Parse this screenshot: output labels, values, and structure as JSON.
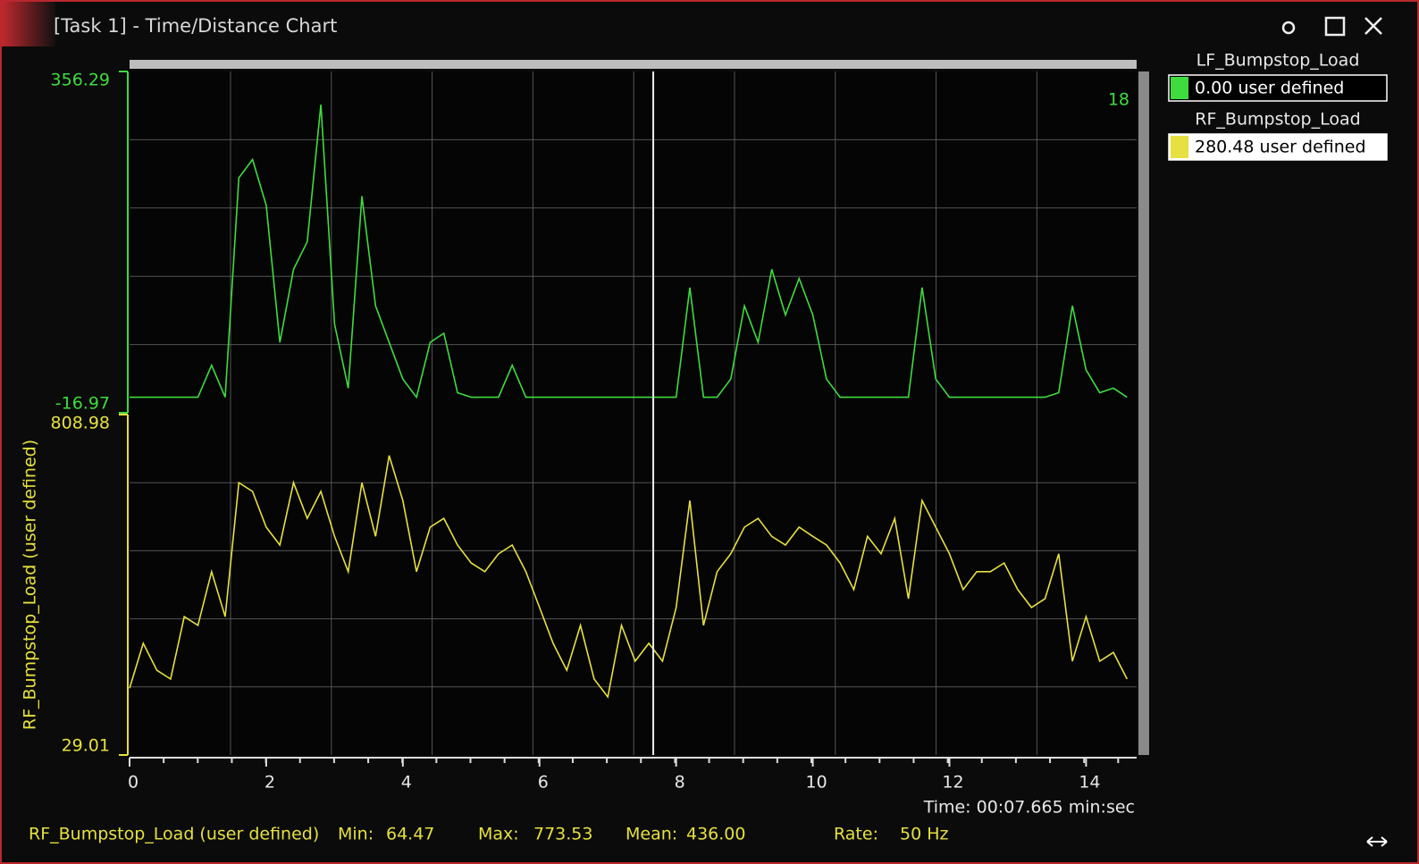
{
  "window": {
    "title": "[Task 1] - Time/Distance Chart"
  },
  "chart_data": [
    {
      "type": "line",
      "annotation": "18",
      "x": [
        0,
        0.2,
        0.4,
        0.6,
        0.8,
        1,
        1.2,
        1.4,
        1.6,
        1.8,
        2,
        2.2,
        2.4,
        2.6,
        2.8,
        3,
        3.2,
        3.4,
        3.6,
        3.8,
        4,
        4.2,
        4.4,
        4.6,
        4.8,
        5,
        5.2,
        5.4,
        5.6,
        5.8,
        6,
        6.2,
        6.4,
        6.6,
        6.8,
        7,
        7.2,
        7.4,
        7.6,
        7.8,
        8,
        8.2,
        8.4,
        8.6,
        8.8,
        9,
        9.2,
        9.4,
        9.6,
        9.8,
        10,
        10.2,
        10.4,
        10.6,
        10.8,
        11,
        11.2,
        11.4,
        11.6,
        11.8,
        12,
        12.2,
        12.4,
        12.6,
        12.8,
        13,
        13.2,
        13.4,
        13.6,
        13.8,
        14,
        14.2,
        14.4,
        14.6
      ],
      "xlim": [
        0,
        14.74
      ],
      "ylim": [
        -16.97,
        356.29
      ],
      "yticks": [
        -16.97,
        356.29
      ],
      "series": [
        {
          "name": "LF_Bumpstop_Load",
          "readout": "0.00 user defined",
          "color": "#3fdc3f",
          "values": [
            0,
            0,
            0,
            0,
            0,
            0,
            35,
            0,
            240,
            260,
            210,
            60,
            140,
            170,
            320,
            80,
            10,
            220,
            100,
            60,
            20,
            0,
            60,
            70,
            5,
            0,
            0,
            0,
            35,
            0,
            0,
            0,
            0,
            0,
            0,
            0,
            0,
            0,
            0,
            0,
            0,
            120,
            0,
            0,
            20,
            100,
            60,
            140,
            90,
            130,
            90,
            20,
            0,
            0,
            0,
            0,
            0,
            0,
            120,
            20,
            0,
            0,
            0,
            0,
            0,
            0,
            0,
            0,
            5,
            100,
            30,
            5,
            10,
            0
          ]
        }
      ]
    },
    {
      "type": "line",
      "ylabel": "RF_Bumpstop_Load (user defined)",
      "x": [
        0,
        0.2,
        0.4,
        0.6,
        0.8,
        1,
        1.2,
        1.4,
        1.6,
        1.8,
        2,
        2.2,
        2.4,
        2.6,
        2.8,
        3,
        3.2,
        3.4,
        3.6,
        3.8,
        4,
        4.2,
        4.4,
        4.6,
        4.8,
        5,
        5.2,
        5.4,
        5.6,
        5.8,
        6,
        6.2,
        6.4,
        6.6,
        6.8,
        7,
        7.2,
        7.4,
        7.6,
        7.8,
        8,
        8.2,
        8.4,
        8.6,
        8.8,
        9,
        9.2,
        9.4,
        9.6,
        9.8,
        10,
        10.2,
        10.4,
        10.6,
        10.8,
        11,
        11.2,
        11.4,
        11.6,
        11.8,
        12,
        12.2,
        12.4,
        12.6,
        12.8,
        13,
        13.2,
        13.4,
        13.6,
        13.8,
        14,
        14.2,
        14.4,
        14.6
      ],
      "xlim": [
        0,
        14.74
      ],
      "xticks": [
        0,
        2,
        4,
        6,
        8,
        10,
        12,
        14
      ],
      "ylim": [
        29.01,
        808.98
      ],
      "yticks": [
        29.01,
        808.98
      ],
      "series": [
        {
          "name": "RF_Bumpstop_Load",
          "readout": "280.48 user defined",
          "color": "#e6e040",
          "values": [
            182,
            285,
            223,
            203,
            346,
            326,
            449,
            346,
            653,
            633,
            551,
            510,
            653,
            571,
            633,
            530,
            449,
            653,
            530,
            715,
            612,
            449,
            551,
            571,
            510,
            469,
            449,
            490,
            510,
            449,
            367,
            285,
            223,
            326,
            203,
            162,
            326,
            244,
            285,
            244,
            367,
            612,
            326,
            449,
            490,
            551,
            571,
            530,
            510,
            551,
            530,
            510,
            469,
            408,
            530,
            490,
            571,
            387,
            612,
            551,
            490,
            408,
            449,
            449,
            469,
            408,
            367,
            387,
            490,
            244,
            346,
            244,
            264,
            203
          ]
        }
      ]
    }
  ],
  "cursor": {
    "x": 7.665,
    "label": "Time: 00:07.665 min:sec"
  },
  "status": {
    "name": "RF_Bumpstop_Load (user defined)",
    "min_label": "Min:",
    "min": "64.47",
    "max_label": "Max:",
    "max": "773.53",
    "mean_label": "Mean:",
    "mean": "436.00",
    "rate_label": "Rate:",
    "rate": "50 Hz"
  }
}
